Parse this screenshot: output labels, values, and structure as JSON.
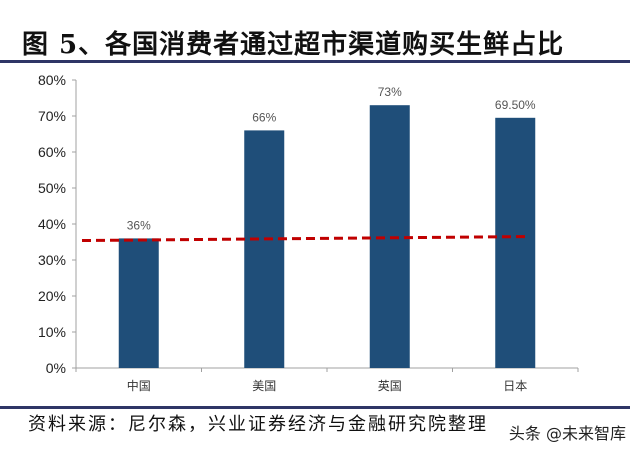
{
  "figure": {
    "title": "图 5、各国消费者通过超市渠道购买生鲜占比",
    "source": "资料来源：尼尔森，兴业证券经济与金融研究院整理",
    "watermark": "头条 @未来智库"
  },
  "colors": {
    "bar": "#1f4e79",
    "reference_line": "#c00000",
    "rule": "#2e3566",
    "axis": "#a0a0a0"
  },
  "chart_data": {
    "type": "bar",
    "title": "图 5、各国消费者通过超市渠道购买生鲜占比",
    "xlabel": "",
    "ylabel": "",
    "categories": [
      "中国",
      "美国",
      "英国",
      "日本"
    ],
    "values": [
      36,
      66,
      73,
      69.5
    ],
    "value_labels": [
      "36%",
      "66%",
      "73%",
      "69.50%"
    ],
    "ylim": [
      0,
      80
    ],
    "yticks": [
      "0%",
      "10%",
      "20%",
      "30%",
      "40%",
      "50%",
      "60%",
      "70%",
      "80%"
    ],
    "grid": false,
    "legend": null,
    "annotations": [
      {
        "type": "dashed_reference_line",
        "color": "#c00000",
        "approx_value": 36,
        "description": "red dashed line near China's level (~36%) across all bars"
      }
    ]
  }
}
